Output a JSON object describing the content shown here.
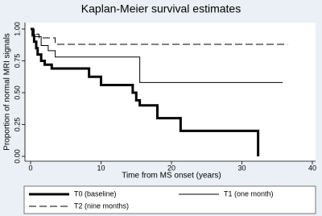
{
  "chart_data": {
    "type": "step",
    "title": "Kaplan-Meier survival estimates",
    "x_label": "Time from MS onset (years)",
    "y_label": "Proportion of normal MRI signals",
    "xlim": [
      0,
      40
    ],
    "xticks": [
      0,
      10,
      20,
      30,
      40
    ],
    "ylim": [
      0,
      1
    ],
    "yticks": [
      {
        "value": 0,
        "label": "0.00"
      },
      {
        "value": 0.25,
        "label": "0.25"
      },
      {
        "value": 0.5,
        "label": "0.50"
      },
      {
        "value": 0.75,
        "label": "0.75"
      },
      {
        "value": 1,
        "label": "1.00"
      }
    ],
    "series": [
      {
        "name": "T0 (baseline)",
        "color": "#000000",
        "line_width": 3,
        "dashed": false,
        "x": [
          0,
          0.3,
          0.5,
          0.8,
          1.0,
          1.5,
          2.0,
          3.0,
          8.3,
          10.0,
          14.5,
          15.0,
          15.5,
          18.0,
          21.3,
          32.3,
          32.3
        ],
        "values": [
          1,
          0.95,
          0.9,
          0.85,
          0.8,
          0.75,
          0.72,
          0.69,
          0.625,
          0.56,
          0.5,
          0.44,
          0.4,
          0.3,
          0.2,
          0.2,
          0
        ]
      },
      {
        "name": "T1 (one month)",
        "color": "#000000",
        "line_width": 1,
        "dashed": false,
        "x": [
          0,
          0.5,
          1.5,
          2.5,
          3.5,
          15.5,
          35.8
        ],
        "values": [
          1,
          0.94,
          0.87,
          0.83,
          0.78,
          0.58,
          0.58
        ]
      },
      {
        "name": "T2 (nine months)",
        "color": "#000000",
        "line_width": 1,
        "dashed": true,
        "x": [
          0,
          0.5,
          1.2,
          3.5,
          36.5
        ],
        "values": [
          1,
          0.96,
          0.93,
          0.88,
          0.88
        ]
      }
    ]
  }
}
